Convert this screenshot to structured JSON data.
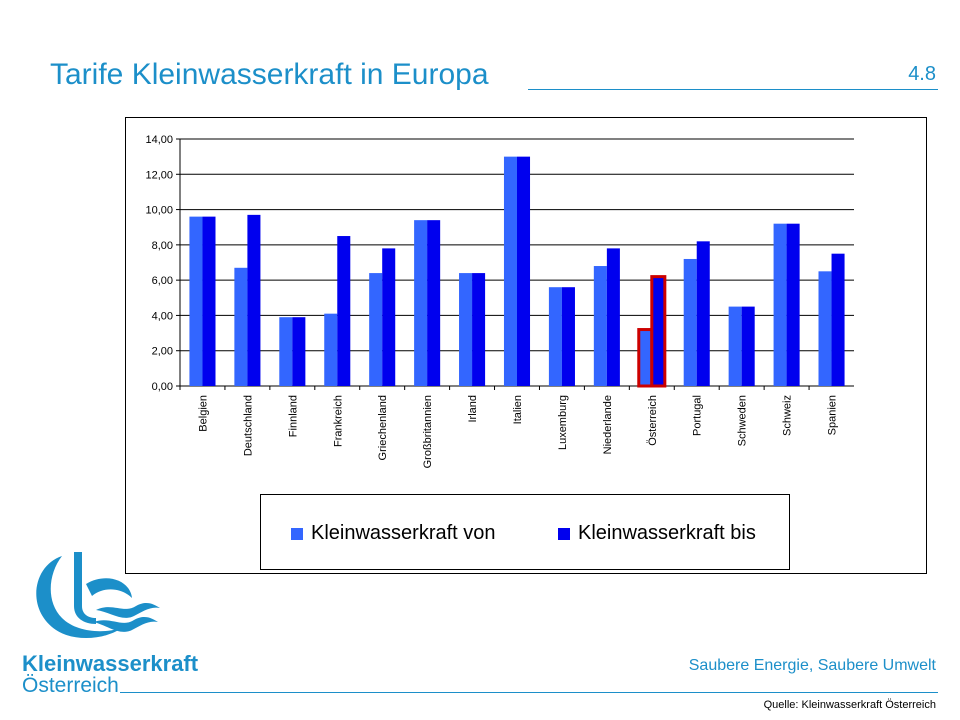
{
  "header": {
    "title": "Tarife Kleinwasserkraft in Europa",
    "slide_number": "4.8"
  },
  "chart_data": {
    "type": "bar",
    "title": "",
    "xlabel": "",
    "ylabel": "",
    "ylim": [
      0,
      14
    ],
    "yticks": [
      "0,00",
      "2,00",
      "4,00",
      "6,00",
      "8,00",
      "10,00",
      "12,00",
      "14,00"
    ],
    "grid": true,
    "legend_position": "bottom",
    "categories": [
      "Belgien",
      "Deutschland",
      "Finnland",
      "Frankreich",
      "Griechenland",
      "Großbritannien",
      "Irland",
      "Italien",
      "Luxemburg",
      "Niederlande",
      "Österreich",
      "Portugal",
      "Schweden",
      "Schweiz",
      "Spanien"
    ],
    "series": [
      {
        "name": "Kleinwasserkraft von",
        "color": "#3366ff",
        "values": [
          9.6,
          6.7,
          3.9,
          4.1,
          6.4,
          9.4,
          6.4,
          13.0,
          5.6,
          6.8,
          3.2,
          7.2,
          4.5,
          9.2,
          6.5
        ]
      },
      {
        "name": "Kleinwasserkraft bis",
        "color": "#0000ee",
        "values": [
          9.6,
          9.7,
          3.9,
          8.5,
          7.8,
          9.4,
          6.4,
          13.0,
          5.6,
          7.8,
          6.2,
          8.2,
          4.5,
          9.2,
          7.5
        ]
      }
    ],
    "highlighted_category": "Österreich",
    "highlight_color": "#cc0000"
  },
  "footer": {
    "logo_line1": "Kleinwasserkraft",
    "logo_line2": "Österreich",
    "tagline": "Saubere Energie, Saubere Umwelt",
    "source": "Quelle: Kleinwasserkraft Österreich"
  }
}
